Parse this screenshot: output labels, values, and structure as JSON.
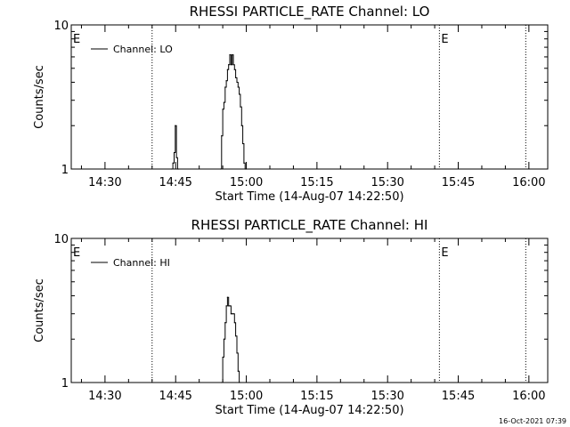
{
  "footer": {
    "timestamp": "16-Oct-2021 07:39"
  },
  "chart_data": [
    {
      "type": "line",
      "title": "RHESSI PARTICLE_RATE Channel: LO",
      "xlabel": "Start Time (14-Aug-07 14:22:50)",
      "ylabel": "Counts/sec",
      "yscale": "log",
      "ylim": [
        1,
        10
      ],
      "ytick_labels": [
        "1",
        "10"
      ],
      "xlim": [
        "14:22:50",
        "16:04:00"
      ],
      "xtick_labels": [
        "14:30",
        "14:45",
        "15:00",
        "15:15",
        "15:30",
        "15:45",
        "16:00"
      ],
      "legend": {
        "position": "top-left",
        "entries": [
          "Channel: LO"
        ]
      },
      "markers": [
        {
          "x": "14:22:50",
          "label": "E",
          "dotted": false
        },
        {
          "x": "14:40:00",
          "label": "",
          "dotted": true
        },
        {
          "x": "15:41:00",
          "label": "E",
          "dotted": true
        },
        {
          "x": "15:59:20",
          "label": "",
          "dotted": true
        }
      ],
      "series": [
        {
          "name": "Channel: LO",
          "x": [
            "14:44:10",
            "14:44:25",
            "14:44:40",
            "14:44:55",
            "14:45:10",
            "14:45:25",
            "14:45:40",
            "14:54:30",
            "14:54:45",
            "14:55:00",
            "14:55:15",
            "14:55:30",
            "14:55:45",
            "14:56:00",
            "14:56:15",
            "14:56:30",
            "14:56:45",
            "14:57:00",
            "14:57:15",
            "14:57:30",
            "14:57:45",
            "14:58:00",
            "14:58:15",
            "14:58:30",
            "14:58:45",
            "14:59:00",
            "14:59:15",
            "14:59:30",
            "14:59:45",
            "15:00:00"
          ],
          "y": [
            1.0,
            1.1,
            1.3,
            2.0,
            1.2,
            1.0,
            1.0,
            1.0,
            1.7,
            2.6,
            2.9,
            3.7,
            4.1,
            4.9,
            5.3,
            6.2,
            5.3,
            6.2,
            5.3,
            4.9,
            4.3,
            4.0,
            3.7,
            3.3,
            2.7,
            2.0,
            1.5,
            1.1,
            1.0,
            1.0
          ]
        }
      ]
    },
    {
      "type": "line",
      "title": "RHESSI PARTICLE_RATE Channel: HI",
      "xlabel": "Start Time (14-Aug-07 14:22:50)",
      "ylabel": "Counts/sec",
      "yscale": "log",
      "ylim": [
        1,
        10
      ],
      "ytick_labels": [
        "1",
        "10"
      ],
      "xlim": [
        "14:22:50",
        "16:04:00"
      ],
      "xtick_labels": [
        "14:30",
        "14:45",
        "15:00",
        "15:15",
        "15:30",
        "15:45",
        "16:00"
      ],
      "legend": {
        "position": "top-left",
        "entries": [
          "Channel: HI"
        ]
      },
      "markers": [
        {
          "x": "14:22:50",
          "label": "E",
          "dotted": false
        },
        {
          "x": "14:40:00",
          "label": "",
          "dotted": true
        },
        {
          "x": "15:41:00",
          "label": "E",
          "dotted": true
        },
        {
          "x": "15:59:20",
          "label": "",
          "dotted": true
        }
      ],
      "series": [
        {
          "name": "Channel: HI",
          "x": [
            "14:54:45",
            "14:55:00",
            "14:55:15",
            "14:55:30",
            "14:55:45",
            "14:56:00",
            "14:56:15",
            "14:56:30",
            "14:56:45",
            "14:57:00",
            "14:57:15",
            "14:57:30",
            "14:57:45",
            "14:58:00",
            "14:58:15",
            "14:58:30",
            "14:58:45"
          ],
          "y": [
            1.0,
            1.5,
            2.0,
            2.6,
            3.4,
            3.9,
            3.4,
            3.4,
            3.0,
            3.0,
            3.0,
            2.6,
            2.1,
            1.6,
            1.2,
            1.0,
            1.0
          ]
        }
      ]
    }
  ]
}
